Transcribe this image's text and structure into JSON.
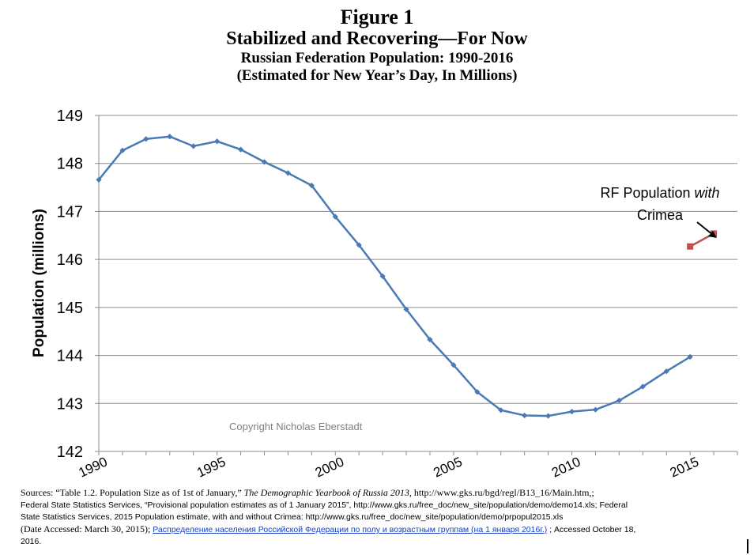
{
  "header": {
    "figure_label": "Figure 1",
    "headline": "Stabilized and Recovering—For Now",
    "subtitle": "Russian Federation Population: 1990-2016",
    "subtitle2": "(Estimated for New Year’s Day, In Millions)"
  },
  "chart_data": {
    "type": "line",
    "title": "Russian Federation Population: 1990-2016",
    "ylabel": "Population (millions)",
    "xlabel": "",
    "ylim": [
      142,
      149
    ],
    "xlim": [
      1990,
      2017
    ],
    "yticks": [
      "142",
      "143",
      "144",
      "145",
      "146",
      "147",
      "148",
      "149"
    ],
    "xticks": [
      "1990",
      "1995",
      "2000",
      "2005",
      "2010",
      "2015"
    ],
    "grid": true,
    "series": [
      {
        "color": "#4a7ab5",
        "x": [
          1990,
          1991,
          1992,
          1993,
          1994,
          1995,
          1996,
          1997,
          1998,
          1999,
          2000,
          2001,
          2002,
          2003,
          2004,
          2005,
          2006,
          2007,
          2008,
          2009,
          2010,
          2011,
          2012,
          2013,
          2014,
          2015
        ],
        "values": [
          147.66,
          148.27,
          148.51,
          148.56,
          148.36,
          148.46,
          148.29,
          148.03,
          147.8,
          147.54,
          146.89,
          146.3,
          145.65,
          144.96,
          144.33,
          143.8,
          143.24,
          142.86,
          142.75,
          142.74,
          142.83,
          142.87,
          143.06,
          143.35,
          143.67,
          143.97
        ]
      },
      {
        "name": "RF Population with Crimea",
        "color": "#c0504d",
        "x": [
          2015,
          2016
        ],
        "values": [
          146.27,
          146.54
        ]
      }
    ],
    "annotations": {
      "crimea_label_line1_prefix": "RF Population ",
      "crimea_label_line1_italic": "with",
      "crimea_label_line2": "Crimea",
      "copyright": "Copyright Nicholas Eberstadt"
    }
  },
  "sources": {
    "line1_a": "Sources: “Table 1.2. Population Size as of 1st of January,” ",
    "line1_italic": "The Demographic Yearbook of Russia 2013",
    "line1_b": ", http://www.gks.ru/bgd/regl/B13_16/Main.htm,;",
    "line2": "Federal State Statistics Services, “Provisional population estimates as of 1 January 2015”, http://www.gks.ru/free_doc/new_site/population/demo/demo14.xls; Federal",
    "line3": "State Statistics Services, 2015 Population estimate, with and without Crimea: http://www.gks.ru/free_doc/new_site/population/demo/prpopul2015.xls",
    "line4_a": " (Date Accessed: March 30, 2015); ",
    "line4_link": "Распределение населения Российской Федерации по полу и возрастным группам (на 1 января 2016г.)",
    "line4_b": " ; Accessed October 18,",
    "line5": "2016."
  }
}
